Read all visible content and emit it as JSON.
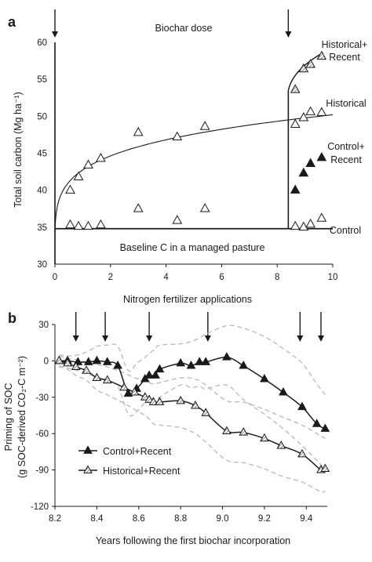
{
  "chart_data": [
    {
      "panel": "a",
      "type": "scatter",
      "ylabel": "Total soil carbon (Mg ha⁻¹)",
      "xlabel": "",
      "xlim": [
        0,
        10
      ],
      "ylim": [
        30,
        60
      ],
      "xticks": [
        0,
        2,
        4,
        6,
        8,
        10
      ],
      "yticks": [
        30,
        35,
        40,
        45,
        50,
        55,
        60
      ],
      "annotations": {
        "top": "Biochar dose",
        "baseline": "Baseline C in a managed pasture",
        "historical_recent": [
          "Historical+",
          "Recent"
        ],
        "historical": "Historical",
        "control_recent": [
          "Control+",
          "Recent"
        ],
        "control": "Control",
        "bottom": "Nitrogen fertilizer applications"
      },
      "dose_arrows_x": [
        0,
        8.4
      ],
      "series": [
        {
          "key": "historical",
          "marker": "open-triangle",
          "x": [
            0.55,
            0.85,
            1.2,
            1.65,
            3.0,
            4.4,
            5.4,
            8.65,
            8.95,
            9.2,
            9.6
          ],
          "y": [
            40.0,
            41.8,
            43.4,
            44.3,
            47.8,
            47.2,
            48.6,
            48.9,
            49.8,
            50.6,
            50.5
          ]
        },
        {
          "key": "control",
          "marker": "open-triangle",
          "x": [
            0.55,
            0.85,
            1.2,
            1.65,
            3.0,
            4.4,
            5.4,
            8.65,
            8.95,
            9.2,
            9.6
          ],
          "y": [
            35.3,
            35.1,
            35.1,
            35.3,
            37.5,
            35.9,
            37.5,
            35.1,
            35.0,
            35.4,
            36.2
          ]
        },
        {
          "key": "control_recent",
          "marker": "filled-triangle",
          "x": [
            8.65,
            8.95,
            9.2,
            9.6
          ],
          "y": [
            40.0,
            42.3,
            43.6,
            44.4
          ]
        },
        {
          "key": "historical_recent",
          "marker": "hatched-triangle",
          "x": [
            8.65,
            8.95,
            9.2,
            9.6
          ],
          "y": [
            53.6,
            56.4,
            57.0,
            58.1
          ]
        }
      ],
      "fits": {
        "historical_curve": {
          "x0": 0,
          "y0": 30,
          "x1": 10,
          "y1": 50.2
        },
        "baseline_y": 34.8,
        "step": {
          "x": 8.4,
          "y_from": 34.8,
          "y_to": 53.5,
          "y_end": 58.6,
          "x_end": 9.65
        }
      }
    },
    {
      "panel": "b",
      "type": "line",
      "ylabel": [
        "Priming of SOC",
        "(g SOC-derived CO₂-C m⁻²)"
      ],
      "xlabel": "Years following the first biochar incorporation",
      "xlim": [
        8.2,
        9.5
      ],
      "ylim": [
        -120,
        30
      ],
      "xticks": [
        8.2,
        8.4,
        8.6,
        8.8,
        9.0,
        9.2,
        9.4
      ],
      "xtick_labels": [
        "8.2",
        "8.4",
        "8.6",
        "8.8",
        "9.0",
        "9.2",
        "9.4"
      ],
      "yticks": [
        30,
        0,
        -30,
        -60,
        -90,
        -120
      ],
      "n_fertilizer_arrows_x": [
        8.3,
        8.44,
        8.65,
        8.93,
        9.37,
        9.47
      ],
      "legend": {
        "placement": "lower-left",
        "entries": [
          "Control+Recent",
          "Historical+Recent"
        ]
      },
      "series": [
        {
          "name": "Control+Recent",
          "marker": "filled-triangle",
          "x": [
            8.22,
            8.26,
            8.31,
            8.36,
            8.4,
            8.45,
            8.5,
            8.55,
            8.59,
            8.63,
            8.65,
            8.68,
            8.7,
            8.8,
            8.85,
            8.89,
            8.92,
            9.02,
            9.1,
            9.2,
            9.29,
            9.38,
            9.45,
            9.49
          ],
          "y": [
            0,
            0,
            -1,
            -1,
            0,
            -1,
            -4,
            -27,
            -23,
            -15,
            -12,
            -12,
            -7,
            -2,
            -4,
            -1,
            -1,
            3,
            -4,
            -15,
            -26,
            -38,
            -52,
            -56
          ],
          "upper": [
            5,
            4,
            5,
            8,
            12,
            13,
            12,
            -8,
            -2,
            3,
            6,
            10,
            13,
            14,
            16,
            19,
            22,
            29,
            27,
            20,
            10,
            -2,
            -19,
            -28
          ],
          "lower": [
            -5,
            -6,
            -8,
            -11,
            -13,
            -17,
            -21,
            -44,
            -42,
            -34,
            -30,
            -33,
            -30,
            -20,
            -22,
            -21,
            -23,
            -20,
            -32,
            -44,
            -56,
            -70,
            -82,
            -90
          ]
        },
        {
          "name": "Historical+Recent",
          "marker": "hatched-triangle",
          "x": [
            8.22,
            8.26,
            8.3,
            8.35,
            8.4,
            8.45,
            8.53,
            8.58,
            8.63,
            8.65,
            8.67,
            8.7,
            8.8,
            8.87,
            8.92,
            9.02,
            9.1,
            9.2,
            9.28,
            9.38,
            9.47,
            9.49
          ],
          "y": [
            0,
            -2,
            -5,
            -8,
            -14,
            -16,
            -22,
            -26,
            -30,
            -32,
            -34,
            -34,
            -33,
            -37,
            -43,
            -58,
            -59,
            -64,
            -70,
            -77,
            -90,
            -89
          ],
          "upper": [
            4,
            2,
            1,
            -1,
            -3,
            -5,
            -10,
            -14,
            -16,
            -18,
            -19,
            -18,
            -14,
            -15,
            -20,
            -33,
            -34,
            -40,
            -46,
            -53,
            -62,
            -64
          ],
          "lower": [
            -4,
            -7,
            -12,
            -16,
            -24,
            -28,
            -35,
            -40,
            -45,
            -48,
            -52,
            -53,
            -55,
            -60,
            -67,
            -82,
            -84,
            -89,
            -95,
            -100,
            -108,
            -107
          ]
        }
      ]
    }
  ]
}
